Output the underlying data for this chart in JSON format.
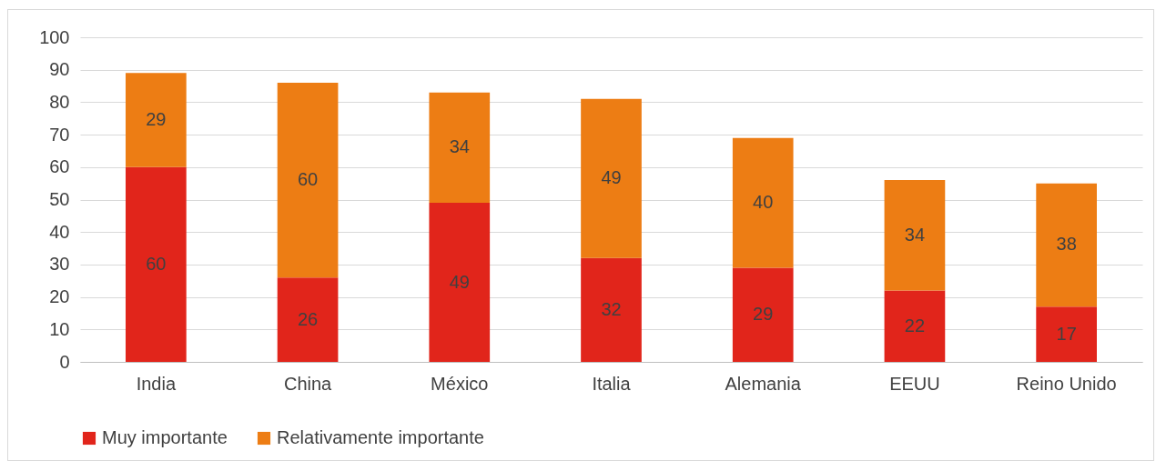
{
  "chart_data": {
    "type": "bar",
    "stacked": true,
    "data_labels": true,
    "grid": "y",
    "legend": "bottom",
    "categories": [
      "India",
      "China",
      "México",
      "Italia",
      "Alemania",
      "EEUU",
      "Reino Unido"
    ],
    "series": [
      {
        "name": "Muy importante",
        "color": "#e1251b",
        "values": [
          60,
          26,
          49,
          32,
          29,
          22,
          17
        ]
      },
      {
        "name": "Relativamente importante",
        "color": "#ed7d14",
        "values": [
          29,
          60,
          34,
          49,
          40,
          34,
          38
        ]
      }
    ],
    "ylim": [
      0,
      100
    ],
    "yticks": [
      0,
      10,
      20,
      30,
      40,
      50,
      60,
      70,
      80,
      90,
      100
    ]
  }
}
